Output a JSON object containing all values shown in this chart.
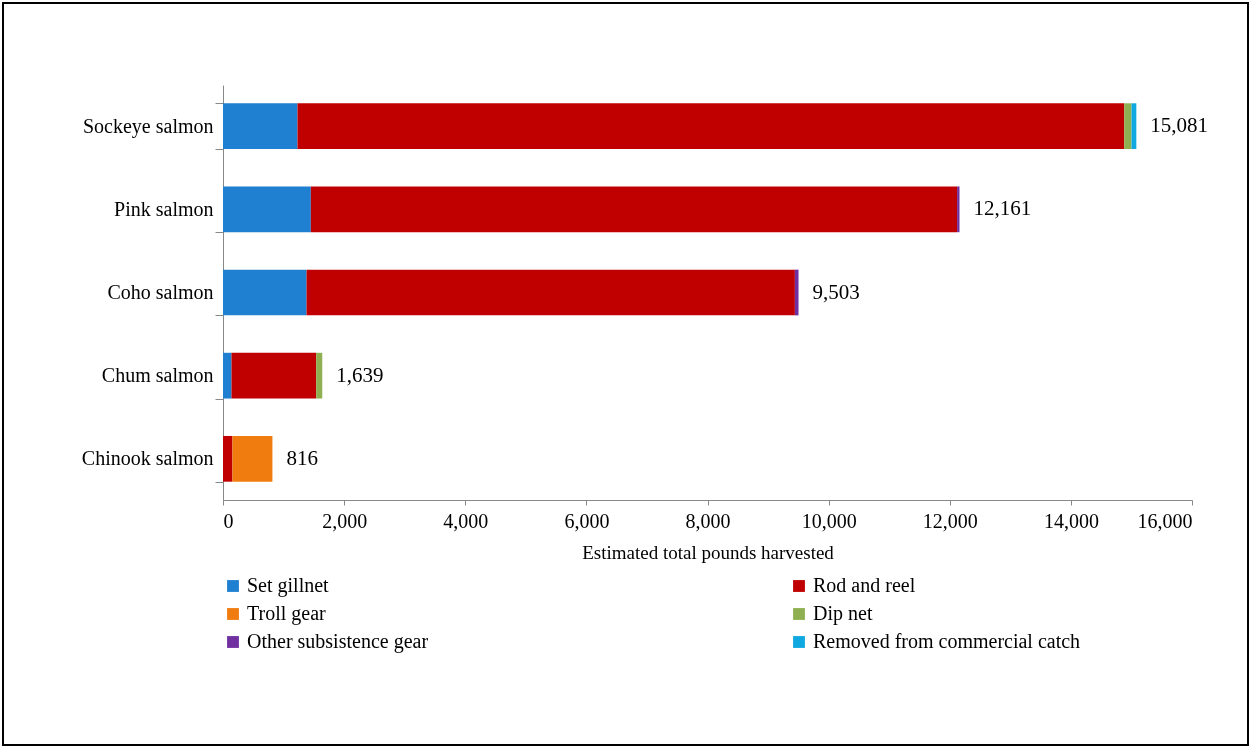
{
  "chart_data": {
    "type": "bar",
    "orientation": "horizontal",
    "stacked": true,
    "xlabel": "Estimated total pounds harvested",
    "categories": [
      "Sockeye salmon",
      "Pink salmon",
      "Coho salmon",
      "Chum salmon",
      "Chinook salmon"
    ],
    "series": [
      {
        "name": "Set gillnet",
        "color": "#1f7fd0",
        "values": [
          1230,
          1450,
          1380,
          140,
          0
        ]
      },
      {
        "name": "Rod and reel",
        "color": "#c00000",
        "values": [
          13651,
          10671,
          8063,
          1399,
          156
        ]
      },
      {
        "name": "Troll gear",
        "color": "#f07c10",
        "values": [
          0,
          0,
          0,
          0,
          660
        ]
      },
      {
        "name": "Dip net",
        "color": "#8fb050",
        "values": [
          120,
          0,
          0,
          100,
          0
        ]
      },
      {
        "name": "Other subsistence gear",
        "color": "#7030a0",
        "values": [
          0,
          40,
          60,
          0,
          0
        ]
      },
      {
        "name": "Removed from commercial catch",
        "color": "#10a8e0",
        "values": [
          80,
          0,
          0,
          0,
          0
        ]
      }
    ],
    "totals": [
      "15,081",
      "12,161",
      "9,503",
      "1,639",
      "816"
    ],
    "xlim": [
      0,
      16000
    ],
    "xticks": [
      0,
      {
        "value": 2000,
        "label": "2,000"
      },
      {
        "value": 4000,
        "label": "4,000"
      },
      {
        "value": 6000,
        "label": "6,000"
      },
      {
        "value": 8000,
        "label": "8,000"
      },
      {
        "value": 10000,
        "label": "10,000"
      },
      {
        "value": 12000,
        "label": "12,000"
      },
      {
        "value": 14000,
        "label": "14,000"
      },
      {
        "value": 16000,
        "label": "16,000"
      }
    ],
    "grid": false,
    "legend": "bottom"
  }
}
